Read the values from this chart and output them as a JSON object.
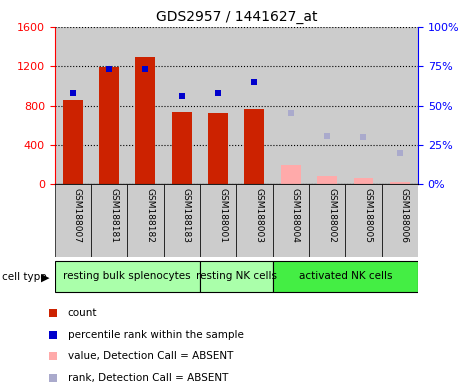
{
  "title": "GDS2957 / 1441627_at",
  "samples": [
    "GSM188007",
    "GSM188181",
    "GSM188182",
    "GSM188183",
    "GSM188001",
    "GSM188003",
    "GSM188004",
    "GSM188002",
    "GSM188005",
    "GSM188006"
  ],
  "count_values": [
    860,
    1190,
    1295,
    730,
    720,
    770,
    null,
    null,
    null,
    null
  ],
  "count_absent": [
    null,
    null,
    null,
    null,
    null,
    null,
    200,
    80,
    60,
    20
  ],
  "percentile_present": [
    58,
    73,
    73,
    56,
    58,
    65,
    null,
    null,
    null,
    null
  ],
  "percentile_absent": [
    null,
    null,
    null,
    null,
    null,
    null,
    45,
    31,
    30,
    20
  ],
  "cell_types": [
    {
      "label": "resting bulk splenocytes",
      "start": 0,
      "end": 4
    },
    {
      "label": "resting NK cells",
      "start": 4,
      "end": 6
    },
    {
      "label": "activated NK cells",
      "start": 6,
      "end": 10
    }
  ],
  "cell_type_colors": [
    "#aaffaa",
    "#aaffaa",
    "#44ee44"
  ],
  "ylim_left": [
    0,
    1600
  ],
  "ylim_right": [
    0,
    100
  ],
  "yticks_left": [
    0,
    400,
    800,
    1200,
    1600
  ],
  "yticks_right": [
    0,
    25,
    50,
    75,
    100
  ],
  "ytick_labels_right": [
    "0%",
    "25%",
    "50%",
    "75%",
    "100%"
  ],
  "bar_color_present": "#cc2200",
  "bar_color_absent": "#ffaaaa",
  "dot_color_present": "#0000cc",
  "dot_color_absent": "#aaaacc",
  "sample_bg_color": "#cccccc",
  "legend_items": [
    {
      "color": "#cc2200",
      "label": "count",
      "shape": "s"
    },
    {
      "color": "#0000cc",
      "label": "percentile rank within the sample",
      "shape": "s"
    },
    {
      "color": "#ffaaaa",
      "label": "value, Detection Call = ABSENT",
      "shape": "s"
    },
    {
      "color": "#aaaacc",
      "label": "rank, Detection Call = ABSENT",
      "shape": "s"
    }
  ]
}
